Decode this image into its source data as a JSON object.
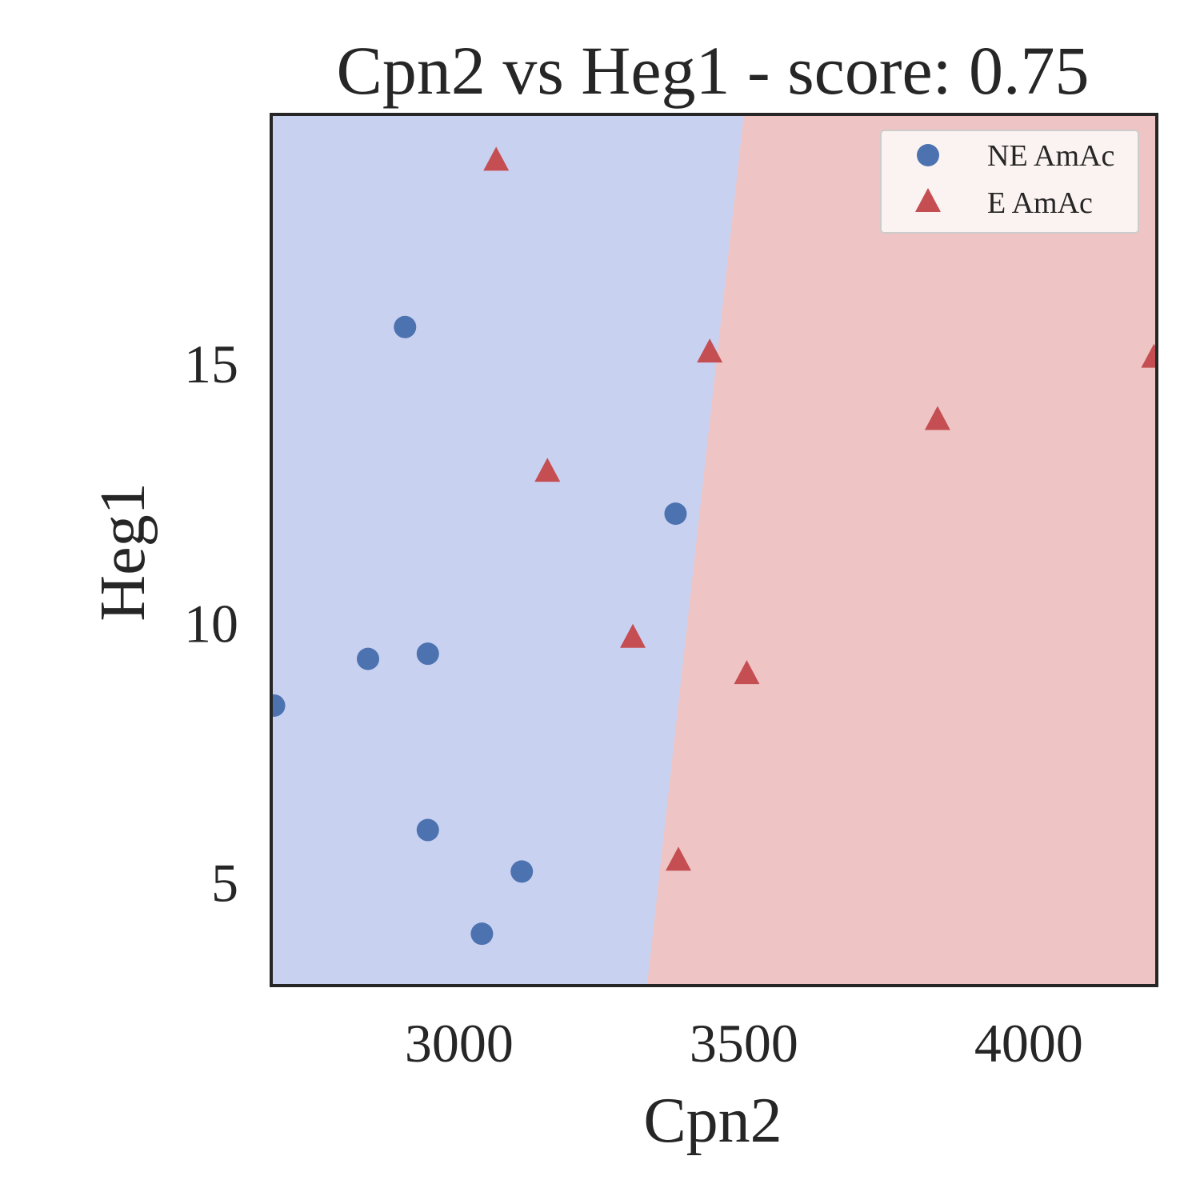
{
  "chart_data": {
    "type": "scatter",
    "title": "Cpn2 vs Heg1 - score: 0.75",
    "xlabel": "Cpn2",
    "ylabel": "Heg1",
    "xlim": [
      2670,
      4225
    ],
    "ylim": [
      3.0,
      19.8
    ],
    "xticks": [
      {
        "value": 3000,
        "label": "3000"
      },
      {
        "value": 3500,
        "label": "3500"
      },
      {
        "value": 4000,
        "label": "4000"
      }
    ],
    "yticks": [
      {
        "value": 5,
        "label": "5"
      },
      {
        "value": 10,
        "label": "10"
      },
      {
        "value": 15,
        "label": "15"
      }
    ],
    "grid": false,
    "legend_position": "top-right",
    "decision_boundary": {
      "line": [
        [
          3330,
          3.0
        ],
        [
          3500,
          19.8
        ]
      ],
      "left_region": "NE AmAc",
      "right_region": "E AmAc"
    },
    "series": [
      {
        "name": "NE AmAc",
        "marker": "circle",
        "color": "#4c72b0",
        "points": [
          {
            "x": 2675,
            "y": 8.4
          },
          {
            "x": 2840,
            "y": 9.3
          },
          {
            "x": 2905,
            "y": 15.7
          },
          {
            "x": 2945,
            "y": 9.4
          },
          {
            "x": 2945,
            "y": 6.0
          },
          {
            "x": 3040,
            "y": 4.0
          },
          {
            "x": 3110,
            "y": 5.2
          },
          {
            "x": 3380,
            "y": 12.1
          }
        ]
      },
      {
        "name": "E AmAc",
        "marker": "triangle",
        "color": "#c44e52",
        "points": [
          {
            "x": 3065,
            "y": 18.9
          },
          {
            "x": 3155,
            "y": 12.9
          },
          {
            "x": 3305,
            "y": 9.7
          },
          {
            "x": 3385,
            "y": 5.4
          },
          {
            "x": 3440,
            "y": 15.2
          },
          {
            "x": 3505,
            "y": 9.0
          },
          {
            "x": 3840,
            "y": 13.9
          },
          {
            "x": 4220,
            "y": 15.1
          }
        ]
      }
    ],
    "colors": {
      "region_left": "#c9d1f1",
      "region_right": "#eec5c4",
      "axis_frame": "#262626",
      "legend_bg": "#fbf3f1",
      "legend_border": "#cccccc"
    }
  }
}
